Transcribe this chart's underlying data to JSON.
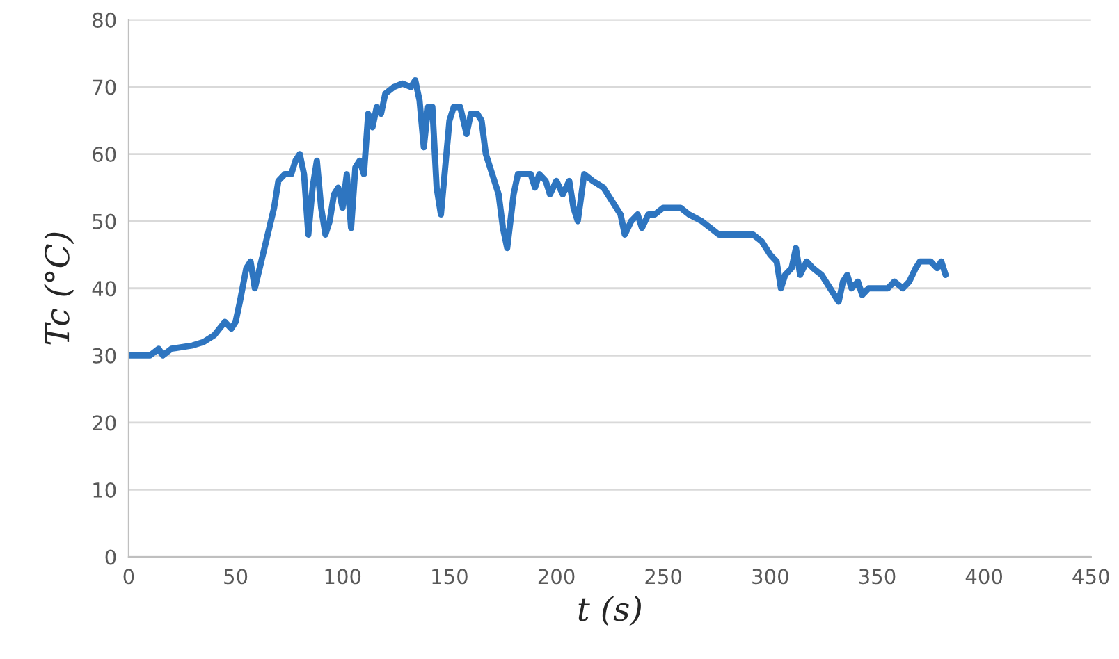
{
  "chart_data": {
    "type": "line",
    "xlabel": "t (s)",
    "ylabel": "Tc (°C)",
    "xlim": [
      0,
      450
    ],
    "xticks": [
      0,
      50,
      100,
      150,
      200,
      250,
      300,
      350,
      400,
      450
    ],
    "ylim": [
      0,
      80
    ],
    "yticks": [
      0,
      10,
      20,
      30,
      40,
      50,
      60,
      70,
      80
    ],
    "grid": "y",
    "marker": "none",
    "line_style": "solid",
    "series": [
      {
        "color": "#2e75c0",
        "x": [
          0,
          10,
          14,
          16,
          20,
          30,
          35,
          40,
          45,
          48,
          50,
          52,
          55,
          57,
          59,
          62,
          65,
          68,
          70,
          73,
          76,
          78,
          80,
          82,
          84,
          86,
          88,
          90,
          92,
          94,
          96,
          98,
          100,
          102,
          104,
          106,
          108,
          110,
          112,
          114,
          116,
          118,
          120,
          124,
          128,
          132,
          134,
          136,
          138,
          140,
          142,
          144,
          146,
          148,
          150,
          152,
          155,
          158,
          160,
          163,
          165,
          167,
          170,
          173,
          175,
          177,
          180,
          182,
          185,
          188,
          190,
          192,
          195,
          197,
          200,
          203,
          206,
          208,
          210,
          213,
          217,
          222,
          226,
          230,
          232,
          235,
          238,
          240,
          243,
          246,
          250,
          258,
          262,
          268,
          272,
          276,
          280,
          285,
          292,
          296,
          300,
          303,
          305,
          307,
          310,
          312,
          314,
          317,
          320,
          324,
          328,
          332,
          334,
          336,
          338,
          341,
          343,
          346,
          350,
          355,
          358,
          362,
          365,
          368,
          370,
          375,
          378,
          380,
          382
        ],
        "values": [
          30,
          30,
          31,
          30,
          31,
          31.5,
          32,
          33,
          35,
          34,
          35,
          38,
          43,
          44,
          40,
          44,
          48,
          52,
          56,
          57,
          57,
          59,
          60,
          57,
          48,
          55,
          59,
          52,
          48,
          50,
          54,
          55,
          52,
          57,
          49,
          58,
          59,
          57,
          66,
          64,
          67,
          66,
          69,
          70,
          70.5,
          70,
          71,
          68,
          61,
          67,
          67,
          55,
          51,
          58,
          65,
          67,
          67,
          63,
          66,
          66,
          65,
          60,
          57,
          54,
          49,
          46,
          54,
          57,
          57,
          57,
          55,
          57,
          56,
          54,
          56,
          54,
          56,
          52,
          50,
          57,
          56,
          55,
          53,
          51,
          48,
          50,
          51,
          49,
          51,
          51,
          52,
          52,
          51,
          50,
          49,
          48,
          48,
          48,
          48,
          47,
          45,
          44,
          40,
          42,
          43,
          46,
          42,
          44,
          43,
          42,
          40,
          38,
          41,
          42,
          40,
          41,
          39,
          40,
          40,
          40,
          41,
          40,
          41,
          43,
          44,
          44,
          43,
          44,
          42
        ]
      }
    ]
  }
}
